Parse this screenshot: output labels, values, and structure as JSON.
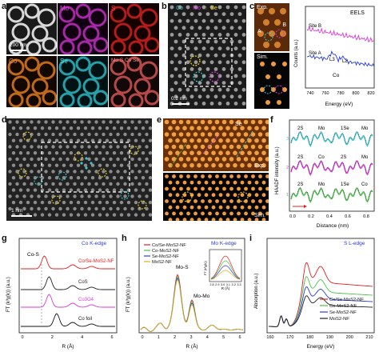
{
  "figure": {
    "a": {
      "letter": "a",
      "tiles": [
        "Mo",
        "S",
        "Co",
        "Se",
        "Mo S Co Se"
      ],
      "scalebar": "200 nm",
      "colors": {
        "Mo": "#d63bd6",
        "S": "#e02020",
        "Co": "#f08a2a",
        "Se": "#38c8cf"
      }
    },
    "b": {
      "letter": "b",
      "legend": [
        "Co",
        "Mo",
        "Se"
      ],
      "scalebar": "0.2 nm"
    },
    "c": {
      "letter": "c",
      "exp_label": "Exp.",
      "sim_label": "Sim.",
      "markB": "B",
      "markA": "A",
      "eels_title": "EELS",
      "siteB": "Site B",
      "siteA": "Site A",
      "L3": "L3",
      "L2": "L2",
      "element": "Co",
      "ylabel": "Counts (a.u.)",
      "xlabel": "Energy (eV)",
      "xticks": [
        "740",
        "760",
        "780",
        "800",
        "820"
      ]
    },
    "d": {
      "letter": "d",
      "scalebar": "1 nm"
    },
    "e": {
      "letter": "e",
      "exp_label": "Exp.",
      "sim_label": "Sim.",
      "se_label": "Se"
    },
    "f": {
      "letter": "f",
      "ylabel": "HAADF intensity (a.u.)",
      "xlabel": "Distance (nm)",
      "xticks": [
        "0.0",
        "0.2",
        "0.4",
        "0.6",
        "0.8"
      ],
      "traces": [
        {
          "id": "3",
          "labels": [
            "2S",
            "Mo",
            "1Se",
            "Mo"
          ],
          "color": "#38c8cf"
        },
        {
          "id": "2",
          "labels": [
            "2S",
            "Co",
            "2S",
            "Mo"
          ],
          "color": "#d63bd6"
        },
        {
          "id": "1",
          "labels": [
            "2S",
            "Mo",
            "1Se",
            "Co"
          ],
          "color": "#4cc24c"
        }
      ]
    },
    "g": {
      "letter": "g",
      "edge": "Co K-edge",
      "peak": "Co-S",
      "ylabel": "FT (k³χ(k)) (a.u.)",
      "xlabel": "R (Å)",
      "xticks": [
        "0",
        "2",
        "4",
        "6"
      ],
      "traces": [
        {
          "name": "Co/Se-MoS2-NF",
          "color": "#e02020"
        },
        {
          "name": "CoS",
          "color": "#222222"
        },
        {
          "name": "Co3O4",
          "color": "#d63bd6"
        },
        {
          "name": "Co foil",
          "color": "#111111"
        }
      ]
    },
    "h": {
      "letter": "h",
      "edge": "Mo K-edge",
      "peak1": "Mo-S",
      "peak2": "Mo-Mo",
      "ylabel": "FT (k³χ(k)) (a.u.)",
      "xlabel": "R (Å)",
      "xticks": [
        "0",
        "1",
        "2",
        "3",
        "4",
        "5",
        "6"
      ],
      "inset_xticks": [
        "2.8",
        "2.9",
        "3.0",
        "3.1",
        "3.2",
        "3.3"
      ],
      "inset_xlabel": "R (Å)",
      "inset_ylabel": "FT (k³χ(k))",
      "legend": [
        {
          "name": "Co/Se-MoS2-NF",
          "color": "#e02020"
        },
        {
          "name": "Co-MoS2-NF",
          "color": "#4cc24c"
        },
        {
          "name": "Se-MoS2-NF",
          "color": "#2a3bd6"
        },
        {
          "name": "MoS2-NF",
          "color": "#e0b020"
        }
      ]
    },
    "i": {
      "letter": "i",
      "edge": "S L-edge",
      "ylabel": "Absorption (a.u.)",
      "xlabel": "Energy (eV)",
      "xticks": [
        "160",
        "170",
        "180",
        "190",
        "200",
        "210"
      ],
      "legend": [
        {
          "name": "Co/Se-MoS2-NF",
          "color": "#e02020"
        },
        {
          "name": "Co-MoS2-NF",
          "color": "#4cc24c"
        },
        {
          "name": "Se-MoS2-NF",
          "color": "#2a3bd6"
        },
        {
          "name": "MoS2-NF",
          "color": "#222222"
        }
      ]
    }
  }
}
